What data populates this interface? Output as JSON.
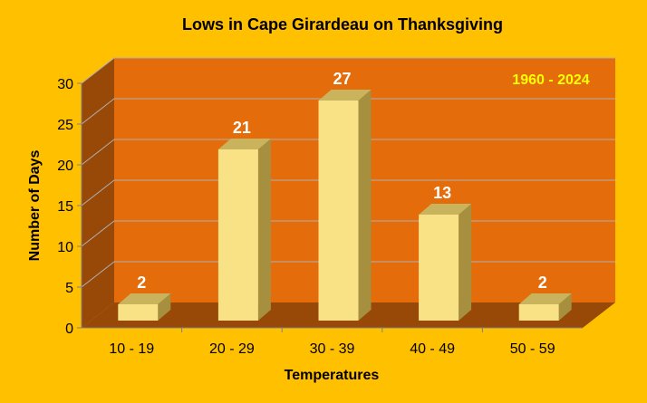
{
  "chart_data": {
    "type": "bar",
    "title": "Lows in Cape Girardeau on Thanksgiving",
    "annotation": "1960 - 2024",
    "xlabel": "Temperatures",
    "ylabel": "Number of Days",
    "categories": [
      "10 - 19",
      "20 - 29",
      "30 - 39",
      "40 - 49",
      "50 - 59"
    ],
    "values": [
      2,
      21,
      27,
      13,
      2
    ],
    "data_labels": [
      "2",
      "21",
      "27",
      "13",
      "2"
    ],
    "ylim": [
      0,
      30
    ],
    "yticks": [
      "0",
      "5",
      "10",
      "15",
      "20",
      "25",
      "30"
    ],
    "grid": true,
    "legend": "none"
  },
  "colors": {
    "background": "#ffc000",
    "wall": "#e46c0a",
    "side_wall": "#984807",
    "floor": "#984807",
    "bar_front": "#f9e286",
    "bar_top": "#c9b35d",
    "bar_side": "#a69040",
    "data_label": "#ffffff",
    "annotation": "#ffff00",
    "text": "#000000"
  }
}
